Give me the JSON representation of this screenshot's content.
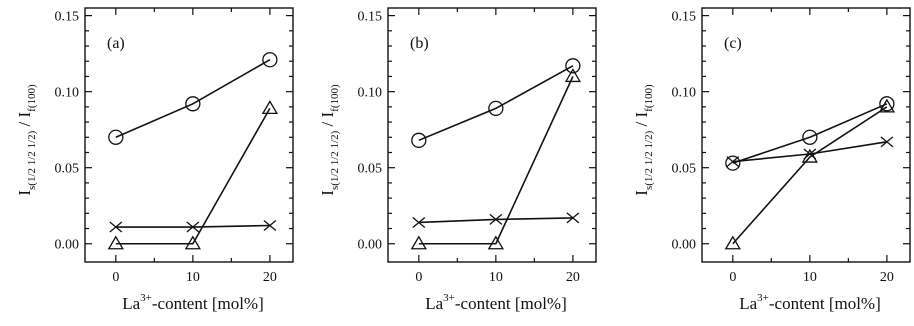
{
  "chart_data": [
    {
      "type": "line",
      "panel_label": "(a)",
      "x": [
        0,
        10,
        20
      ],
      "x_ticks": [
        "0",
        "10",
        "20"
      ],
      "y_ticks": [
        "0.00",
        "0.05",
        "0.10",
        "0.15"
      ],
      "xlim": [
        -4,
        23
      ],
      "ylim": [
        -0.012,
        0.155
      ],
      "xlabel": {
        "base": "La",
        "sup": "3+",
        "rest": "-content [mol%]"
      },
      "ylabel": {
        "I1": "I",
        "sub1": "s(1/2 1/2 1/2)",
        "sep": " / ",
        "I2": "I",
        "sub2": "f(100)"
      },
      "series": [
        {
          "marker": "circle",
          "values": [
            0.07,
            0.092,
            0.121
          ]
        },
        {
          "marker": "triangle",
          "values": [
            0.0,
            0.0,
            0.089
          ]
        },
        {
          "marker": "cross",
          "values": [
            0.011,
            0.011,
            0.012
          ]
        }
      ]
    },
    {
      "type": "line",
      "panel_label": "(b)",
      "x": [
        0,
        10,
        20
      ],
      "x_ticks": [
        "0",
        "10",
        "20"
      ],
      "y_ticks": [
        "0.00",
        "0.05",
        "0.10",
        "0.15"
      ],
      "xlim": [
        -4,
        23
      ],
      "ylim": [
        -0.012,
        0.155
      ],
      "xlabel": {
        "base": "La",
        "sup": "3+",
        "rest": "-content [mol%]"
      },
      "ylabel": {
        "I1": "I",
        "sub1": "s(1/2 1/2 1/2)",
        "sep": " / ",
        "I2": "I",
        "sub2": "f(100)"
      },
      "series": [
        {
          "marker": "circle",
          "values": [
            0.068,
            0.089,
            0.117
          ]
        },
        {
          "marker": "triangle",
          "values": [
            0.0,
            0.0,
            0.11
          ]
        },
        {
          "marker": "cross",
          "values": [
            0.014,
            0.016,
            0.017
          ]
        }
      ]
    },
    {
      "type": "line",
      "panel_label": "(c)",
      "x": [
        0,
        10,
        20
      ],
      "x_ticks": [
        "0",
        "10",
        "20"
      ],
      "y_ticks": [
        "0.00",
        "0.05",
        "0.10",
        "0.15"
      ],
      "xlim": [
        -4,
        23
      ],
      "ylim": [
        -0.012,
        0.155
      ],
      "xlabel": {
        "base": "La",
        "sup": "3+",
        "rest": "-content [mol%]"
      },
      "ylabel": {
        "I1": "I",
        "sub1": "s(1/2 1/2 1/2)",
        "sep": " / ",
        "I2": "I",
        "sub2": "f(100)"
      },
      "series": [
        {
          "marker": "circle",
          "values": [
            0.053,
            0.07,
            0.092
          ]
        },
        {
          "marker": "triangle",
          "values": [
            0.0,
            0.057,
            0.09
          ]
        },
        {
          "marker": "cross",
          "values": [
            0.054,
            0.059,
            0.067
          ]
        }
      ]
    }
  ]
}
